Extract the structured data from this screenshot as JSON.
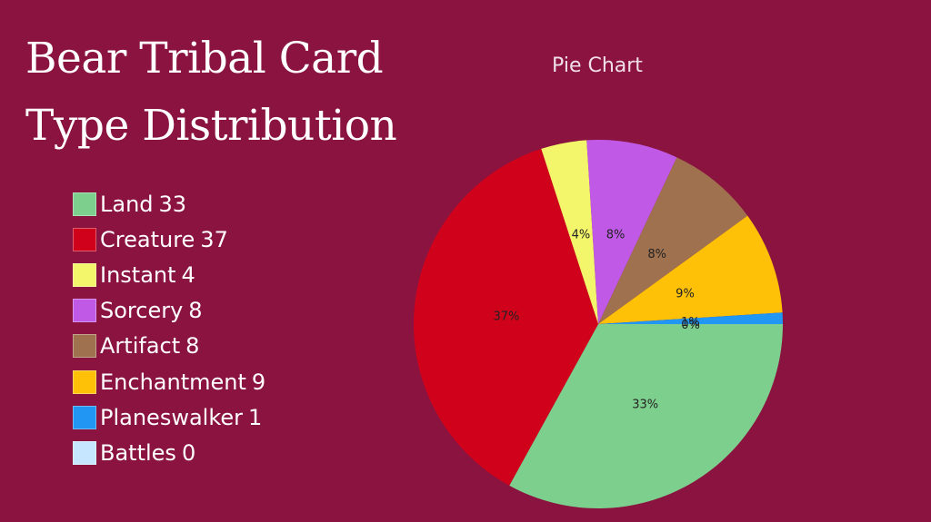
{
  "page": {
    "title": "Bear Tribal Card Type Distribution"
  },
  "chart_data": {
    "type": "pie",
    "title": "Pie Chart",
    "categories": [
      "Land",
      "Creature",
      "Instant",
      "Sorcery",
      "Artifact",
      "Enchantment",
      "Planeswalker",
      "Battles"
    ],
    "values": [
      33,
      37,
      4,
      8,
      8,
      9,
      1,
      0
    ],
    "percent_labels": [
      "33%",
      "37%",
      "4%",
      "8%",
      "8%",
      "9%",
      "1%",
      "0%"
    ],
    "colors": [
      "#7dcf8e",
      "#d0021b",
      "#f3f56a",
      "#c05ae6",
      "#a0714f",
      "#ffc107",
      "#2196f3",
      "#c6e6ff"
    ],
    "legend_position": "left"
  }
}
